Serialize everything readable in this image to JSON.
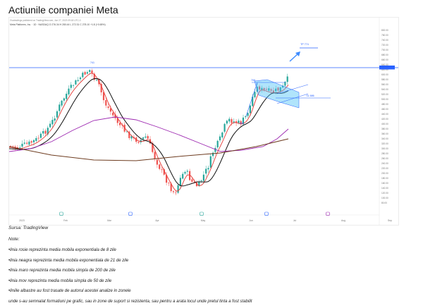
{
  "page": {
    "title": "Actiunile companiei Meta",
    "source": "Sursa: TradingView",
    "notes_heading": "Note:",
    "notes": [
      "•linia rosie reprezinta media mobila exponentiala de 8 zile",
      "•linia neagra reprezinta media mobila exponentiala de 21 de zile",
      "•linia maro reprezinta media mobila simpla de 200 de zile",
      "•linia mov reprezinta media mobila simpla de 50 de zile",
      "•liniile albastre au fost trasate de autorul acestei analize in zonele",
      "unde s-au semnalat formatiuni pe grafic, sau in zone de suport si rezistenta, sau pentru a arata locul unde pretul tinta a fost stabilit"
    ]
  },
  "chart_data": {
    "type": "candlestick",
    "header_line1": "Gvatradings published on TradingView.com, Jun 27, 2023 09:18 UTC-0",
    "header_line2": "Meta Platforms, Inc. · 1D · NASDAQ O 276.34 H 280.44 L 272.31 C 278.10 +1.8 (+0.65%)",
    "x_ticks": [
      "2023",
      "Feb",
      "Mar",
      "Apr",
      "May",
      "Jun",
      "Jul",
      "Aug",
      "Sep"
    ],
    "y_ticks": [
      "800.00",
      "760.00",
      "740.00",
      "720.00",
      "700.00",
      "680.00",
      "660.00",
      "640.00",
      "620.00",
      "600.00",
      "580.00",
      "560.00",
      "540.00",
      "520.00",
      "500.00",
      "480.00",
      "460.00",
      "440.00",
      "420.00",
      "400.00",
      "380.00",
      "360.00",
      "340.00",
      "320.00",
      "300.00",
      "280.00",
      "260.00",
      "240.00",
      "220.00",
      "200.00",
      "180.00",
      "160.00",
      "140.00",
      "120.00",
      "100.00",
      "80.00"
    ],
    "annotations": [
      "741",
      "TP 774",
      "708",
      "SL 686",
      "644"
    ],
    "colors": {
      "up": "#26a69a",
      "down": "#ef5350",
      "ema8": "#e53935",
      "ema21": "#111111",
      "sma50": "#9c27b0",
      "sma200": "#6d3b1f",
      "trendline": "#2962ff",
      "zone": "#4fc3f7"
    },
    "series": [
      {
        "name": "EMA 8"
      },
      {
        "name": "EMA 21"
      },
      {
        "name": "SMA 50"
      },
      {
        "name": "SMA 200"
      }
    ]
  }
}
